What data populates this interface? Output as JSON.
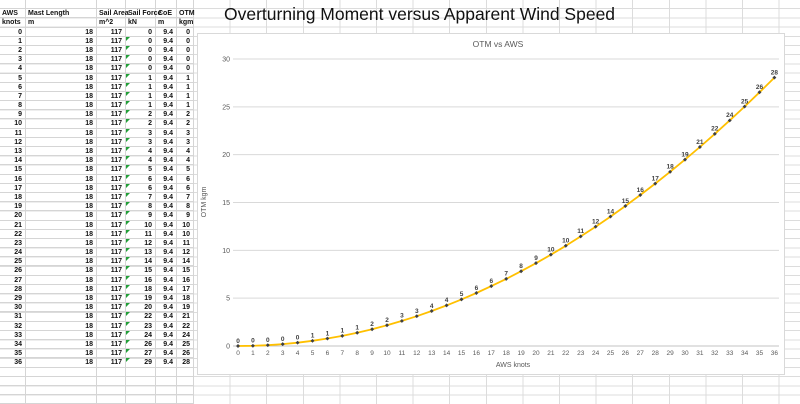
{
  "sheet_title": "Overturning Moment versus Apparent Wind Speed",
  "table": {
    "columns": [
      {
        "label": "AWS",
        "unit": "knots"
      },
      {
        "label": "Mast Length",
        "unit": "m"
      },
      {
        "label": "Sail Area",
        "unit": "m^2"
      },
      {
        "label": "Sail Force",
        "unit": "kN"
      },
      {
        "label": "CoE",
        "unit": "m"
      },
      {
        "label": "OTM",
        "unit": "kgm"
      }
    ],
    "rows": [
      [
        0,
        18,
        117,
        0,
        "9.4",
        0,
        false
      ],
      [
        1,
        18,
        117,
        0,
        "9.4",
        0,
        true
      ],
      [
        2,
        18,
        117,
        0,
        "9.4",
        0,
        true
      ],
      [
        3,
        18,
        117,
        0,
        "9.4",
        0,
        true
      ],
      [
        4,
        18,
        117,
        0,
        "9.4",
        0,
        true
      ],
      [
        5,
        18,
        117,
        1,
        "9.4",
        1,
        true
      ],
      [
        6,
        18,
        117,
        1,
        "9.4",
        1,
        true
      ],
      [
        7,
        18,
        117,
        1,
        "9.4",
        1,
        true
      ],
      [
        8,
        18,
        117,
        1,
        "9.4",
        1,
        true
      ],
      [
        9,
        18,
        117,
        2,
        "9.4",
        2,
        true
      ],
      [
        10,
        18,
        117,
        2,
        "9.4",
        2,
        true
      ],
      [
        11,
        18,
        117,
        3,
        "9.4",
        3,
        true
      ],
      [
        12,
        18,
        117,
        3,
        "9.4",
        3,
        true
      ],
      [
        13,
        18,
        117,
        4,
        "9.4",
        4,
        true
      ],
      [
        14,
        18,
        117,
        4,
        "9.4",
        4,
        true
      ],
      [
        15,
        18,
        117,
        5,
        "9.4",
        5,
        true
      ],
      [
        16,
        18,
        117,
        6,
        "9.4",
        6,
        true
      ],
      [
        17,
        18,
        117,
        6,
        "9.4",
        6,
        true
      ],
      [
        18,
        18,
        117,
        7,
        "9.4",
        7,
        true
      ],
      [
        19,
        18,
        117,
        8,
        "9.4",
        8,
        true
      ],
      [
        20,
        18,
        117,
        9,
        "9.4",
        9,
        true
      ],
      [
        21,
        18,
        117,
        10,
        "9.4",
        10,
        true
      ],
      [
        22,
        18,
        117,
        11,
        "9.4",
        10,
        true
      ],
      [
        23,
        18,
        117,
        12,
        "9.4",
        11,
        true
      ],
      [
        24,
        18,
        117,
        13,
        "9.4",
        12,
        true
      ],
      [
        25,
        18,
        117,
        14,
        "9.4",
        14,
        true
      ],
      [
        26,
        18,
        117,
        15,
        "9.4",
        15,
        true
      ],
      [
        27,
        18,
        117,
        16,
        "9.4",
        16,
        true
      ],
      [
        28,
        18,
        117,
        18,
        "9.4",
        17,
        true
      ],
      [
        29,
        18,
        117,
        19,
        "9.4",
        18,
        true
      ],
      [
        30,
        18,
        117,
        20,
        "9.4",
        19,
        true
      ],
      [
        31,
        18,
        117,
        22,
        "9.4",
        21,
        true
      ],
      [
        32,
        18,
        117,
        23,
        "9.4",
        22,
        true
      ],
      [
        33,
        18,
        117,
        24,
        "9.4",
        24,
        true
      ],
      [
        34,
        18,
        117,
        26,
        "9.4",
        25,
        true
      ],
      [
        35,
        18,
        117,
        27,
        "9.4",
        26,
        true
      ],
      [
        36,
        18,
        117,
        29,
        "9.4",
        28,
        true
      ]
    ]
  },
  "chart_data": {
    "type": "line",
    "title": "OTM vs AWS",
    "xlabel": "AWS knots",
    "ylabel": "OTM kgm",
    "x": [
      0,
      1,
      2,
      3,
      4,
      5,
      6,
      7,
      8,
      9,
      10,
      11,
      12,
      13,
      14,
      15,
      16,
      17,
      18,
      19,
      20,
      21,
      22,
      23,
      24,
      25,
      26,
      27,
      28,
      29,
      30,
      31,
      32,
      33,
      34,
      35,
      36
    ],
    "values": [
      0,
      0,
      0,
      0,
      0,
      1,
      1,
      1,
      1,
      2,
      2,
      3,
      3,
      4,
      4,
      5,
      6,
      6,
      7,
      8,
      9,
      10,
      10,
      11,
      12,
      14,
      15,
      16,
      17,
      18,
      19,
      21,
      22,
      24,
      25,
      26,
      28
    ],
    "xlim": [
      0,
      36
    ],
    "ylim": [
      0,
      30
    ],
    "y_ticks": [
      0,
      5,
      10,
      15,
      20,
      25,
      30
    ],
    "grid": true,
    "legend": "none",
    "data_labels": "above",
    "fit": {
      "type": "quadratic",
      "a": 0.02165
    },
    "line_color": "#FFC000",
    "marker_color": "#404040",
    "label_color": "#404040",
    "axis_text_color": "#595959",
    "gridline_color": "#d9d9d9"
  }
}
